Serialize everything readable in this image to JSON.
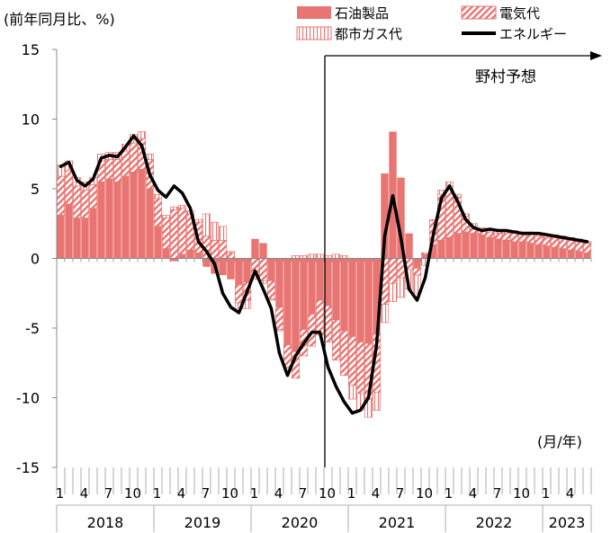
{
  "chart_data": {
    "type": "bar",
    "unit_label": "(前年同月比、%)",
    "x_unit_label": "(月/年)",
    "forecast_label": "野村予想",
    "forecast_start_index": 33,
    "ylim": [
      -15,
      15
    ],
    "yticks": [
      -15,
      -10,
      -5,
      0,
      5,
      10,
      15
    ],
    "month_labels": [
      "1",
      "4",
      "7",
      "10"
    ],
    "year_labels": [
      "2018",
      "2019",
      "2020",
      "2021",
      "2022",
      "2023"
    ],
    "start": "2018-01",
    "legend": {
      "oil": "石油製品",
      "electricity": "電気代",
      "gas": "都市ガス代",
      "energy": "エネルギー"
    },
    "colors": {
      "oil": "#e87572",
      "electricity": "#e87572",
      "gas": "#e87572",
      "energy": "#000000"
    },
    "series": [
      {
        "key": "oil",
        "name": "石油製品",
        "values": [
          3.1,
          3.9,
          2.9,
          2.9,
          3.6,
          5.5,
          5.7,
          5.5,
          5.9,
          6.2,
          6.4,
          5.0,
          2.3,
          0.7,
          -0.2,
          0.3,
          0.6,
          0.4,
          -0.6,
          -1.1,
          -1.2,
          -1.5,
          -1.9,
          -1.7,
          1.4,
          1.1,
          -1.6,
          -3.5,
          -6.2,
          -6.7,
          -5.1,
          -4.0,
          -3.0,
          -3.4,
          -4.4,
          -5.2,
          -5.6,
          -6.0,
          -6.1,
          -5.4,
          6.1,
          9.1,
          5.8,
          1.8,
          -0.7,
          0.3,
          1.0,
          1.3,
          1.5,
          1.8,
          1.9,
          1.8,
          1.7,
          1.5,
          1.4,
          1.3,
          1.2,
          1.2,
          1.1,
          1.0,
          0.9,
          0.8,
          0.7,
          0.6,
          0.5,
          0.4
        ]
      },
      {
        "key": "electricity",
        "name": "電気代",
        "values": [
          2.8,
          2.4,
          2.3,
          2.0,
          1.7,
          1.5,
          1.4,
          1.6,
          1.8,
          2.1,
          2.2,
          2.1,
          2.0,
          2.2,
          3.5,
          3.3,
          2.6,
          2.2,
          1.6,
          1.3,
          1.3,
          0.4,
          -1.3,
          -1.3,
          -1.2,
          -1.6,
          -1.3,
          -1.6,
          -1.6,
          -1.9,
          -1.9,
          -2.3,
          -2.5,
          -2.6,
          -2.9,
          -3.2,
          -3.5,
          -3.7,
          -4.0,
          -4.2,
          -3.3,
          -1.8,
          -1.4,
          -0.8,
          -0.5,
          0.1,
          1.7,
          3.3,
          3.7,
          2.6,
          1.1,
          0.5,
          0.3,
          0.4,
          0.4,
          0.5,
          0.6,
          0.5,
          0.6,
          0.6,
          0.6,
          0.7,
          0.7,
          0.7,
          0.7,
          0.7
        ]
      },
      {
        "key": "gas",
        "name": "都市ガス代",
        "values": [
          0.8,
          0.7,
          0.6,
          0.6,
          0.5,
          0.5,
          0.5,
          0.5,
          0.5,
          0.6,
          0.5,
          0.4,
          0.3,
          0.2,
          0.2,
          0.2,
          0.2,
          0.2,
          1.6,
          1.3,
          1.0,
          0.1,
          -0.4,
          -0.6,
          -0.3,
          -0.2,
          -0.1,
          -0.1,
          -0.1,
          0.2,
          0.2,
          0.3,
          0.3,
          0.2,
          0.3,
          0.2,
          -1.0,
          -1.2,
          -1.3,
          -1.3,
          -1.3,
          -1.3,
          -1.4,
          -1.4,
          -1.3,
          -0.5,
          0.1,
          0.3,
          0.3,
          0.2,
          0.2,
          0.2,
          0.2,
          0.2,
          0.2,
          0.2,
          0.2,
          0.2,
          0.2,
          0.2,
          0.2,
          0.2,
          0.2,
          0.2,
          0.2,
          0.1
        ]
      }
    ],
    "line": {
      "key": "energy",
      "name": "エネルギー",
      "values": [
        6.6,
        6.9,
        5.6,
        5.2,
        5.7,
        7.2,
        7.4,
        7.3,
        8.0,
        8.8,
        8.1,
        6.0,
        4.9,
        4.4,
        5.2,
        4.7,
        3.6,
        1.2,
        0.5,
        -0.4,
        -2.5,
        -3.5,
        -3.9,
        -2.4,
        -0.9,
        -2.2,
        -3.6,
        -6.8,
        -8.4,
        -7.0,
        -6.1,
        -5.3,
        -5.3,
        -7.8,
        -9.2,
        -10.3,
        -11.1,
        -10.9,
        -10.0,
        -6.2,
        1.6,
        4.5,
        1.5,
        -2.2,
        -3.0,
        -1.4,
        1.7,
        4.3,
        5.2,
        4.1,
        2.8,
        2.2,
        2.0,
        2.1,
        2.0,
        2.0,
        1.9,
        1.8,
        1.8,
        1.8,
        1.7,
        1.6,
        1.5,
        1.4,
        1.3,
        1.2
      ]
    }
  }
}
